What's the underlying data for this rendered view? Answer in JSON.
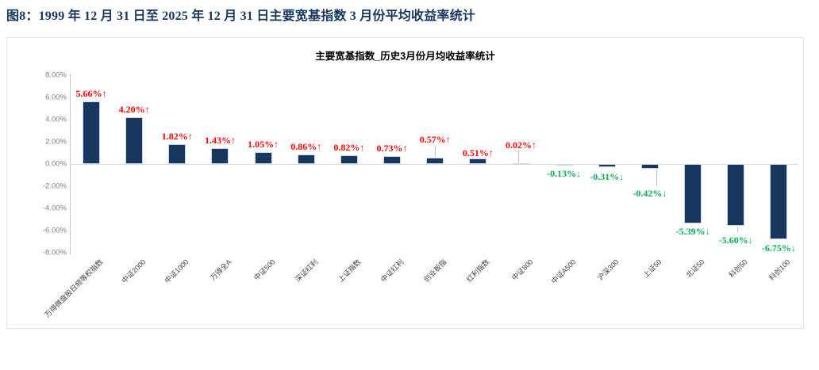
{
  "header": {
    "title": "图8：1999 年 12 月 31 日至 2025 年 12 月 31 日主要宽基指数 3 月份平均收益率统计"
  },
  "chart_data": {
    "type": "bar",
    "title": "主要宽基指数_历史3月份月均收益率统计",
    "categories": [
      "万得微盘股日频等权指数",
      "中证2000",
      "中证1000",
      "万得全A",
      "中证500",
      "深证红利",
      "上证指数",
      "中证红利",
      "创业板指",
      "红利指数",
      "中证800",
      "中证A500",
      "沪深300",
      "上证50",
      "北证50",
      "科创50",
      "科创100"
    ],
    "values": [
      5.66,
      4.2,
      1.82,
      1.43,
      1.05,
      0.86,
      0.82,
      0.73,
      0.57,
      0.51,
      0.02,
      -0.13,
      -0.31,
      -0.42,
      -5.39,
      -5.6,
      -6.75
    ],
    "value_labels": [
      "5.66%↑",
      "4.20%↑",
      "1.82%↑",
      "1.43%↑",
      "1.05%↑",
      "0.86%↑",
      "0.82%↑",
      "0.73%↑",
      "0.57%↑",
      "0.51%↑",
      "0.02%↑",
      "-0.13%↓",
      "-0.31%↓",
      "-0.42%↓",
      "-5.39%↓",
      "-5.60%↓",
      "-6.75%↓"
    ],
    "ylabel": "",
    "xlabel": "",
    "ylim": [
      -8,
      8
    ],
    "yticks": [
      "8.00%",
      "6.00%",
      "4.00%",
      "2.00%",
      "0.00%",
      "-2.00%",
      "-4.00%",
      "-6.00%",
      "-8.00%"
    ],
    "ytick_values": [
      8,
      6,
      4,
      2,
      0,
      -2,
      -4,
      -6,
      -8
    ],
    "grid": "off",
    "legend": "none",
    "colors": {
      "bar": "#17375e",
      "positive_label": "#ff0000",
      "negative_label": "#00b050",
      "header_title": "#17365d",
      "axis_line": "#d9d9d9"
    }
  }
}
